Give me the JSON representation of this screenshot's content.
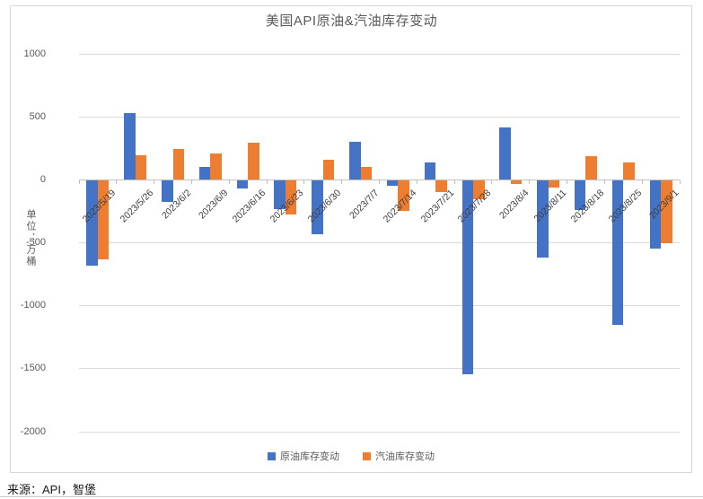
{
  "chart_data": {
    "type": "bar",
    "title": "美国API原油&汽油库存变动",
    "unit_label": "单位：万桶",
    "categories": [
      "2023/5/19",
      "2023/5/26",
      "2023/6/2",
      "2023/6/9",
      "2023/6/16",
      "2023/6/23",
      "2023/6/30",
      "2023/7/7",
      "2023/7/14",
      "2023/7/21",
      "2023/7/28",
      "2023/8/4",
      "2023/8/11",
      "2023/8/18",
      "2023/8/25",
      "2023/9/1"
    ],
    "series": [
      {
        "name": "原油库存变动",
        "color": "#4472C4",
        "values": [
          -680,
          530,
          -175,
          105,
          -70,
          -235,
          -430,
          300,
          -50,
          135,
          -1545,
          415,
          -615,
          -240,
          -1150,
          -545
        ]
      },
      {
        "name": "汽油库存变动",
        "color": "#ED7D31",
        "values": [
          -635,
          195,
          245,
          210,
          295,
          -275,
          160,
          105,
          -245,
          -95,
          -155,
          -30,
          -60,
          190,
          140,
          -505
        ]
      }
    ],
    "ylim": [
      -2000,
      1000
    ],
    "yticks": [
      1000,
      500,
      0,
      -500,
      -1000,
      -1500,
      -2000
    ],
    "grid": true,
    "legend_position": "bottom"
  },
  "source": "来源：API，智堡"
}
